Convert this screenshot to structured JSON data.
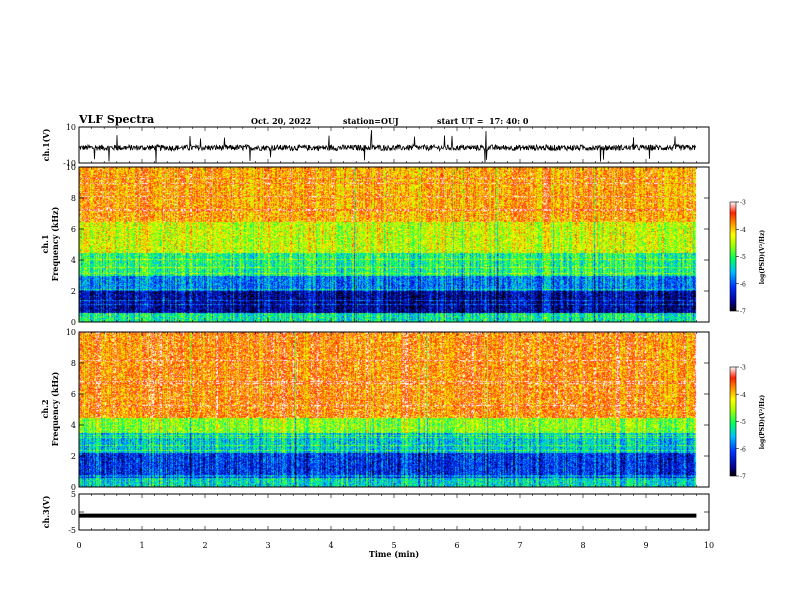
{
  "header": {
    "title": "VLF Spectra",
    "date": "Oct. 20, 2022",
    "station_label": "station=",
    "station": "OUJ",
    "start_label": "start  UT  =",
    "start_time": "17: 40: 0"
  },
  "chart_data": [
    {
      "type": "line",
      "name": "ch1-waveform",
      "ylabel": "ch.1(V)",
      "ylim": [
        -10,
        10
      ],
      "yticks": [
        "10",
        "-10"
      ],
      "xlim": [
        0,
        10
      ],
      "data_end": 9.8,
      "baseline": -1.5,
      "noise_amplitude": 2,
      "grid": false
    },
    {
      "type": "heatmap",
      "name": "ch1-spectrogram",
      "ylabel": "ch.1",
      "ylabel2": "Frequency  (kHz)",
      "ylim": [
        0,
        10
      ],
      "yticks": [
        "0",
        "2",
        "4",
        "6",
        "8",
        "10"
      ],
      "xlim": [
        0,
        10
      ],
      "data_end": 9.8,
      "colorbar": {
        "label": "log(PSD)(V²/Hz)",
        "range": [
          -7,
          -3
        ],
        "ticks": [
          "-3",
          "-4",
          "-5",
          "-6",
          "-7"
        ]
      }
    },
    {
      "type": "heatmap",
      "name": "ch2-spectrogram",
      "ylabel": "ch.2",
      "ylabel2": "Frequency  (kHz)",
      "ylim": [
        0,
        10
      ],
      "yticks": [
        "0",
        "2",
        "4",
        "6",
        "8",
        "10"
      ],
      "xlim": [
        0,
        10
      ],
      "data_end": 9.8,
      "colorbar": {
        "label": "log(PSD)(V²/Hz)",
        "range": [
          -7,
          -3
        ],
        "ticks": [
          "-3",
          "-4",
          "-5",
          "-6",
          "-7"
        ]
      }
    },
    {
      "type": "line",
      "name": "ch3-waveform",
      "ylabel": "ch.3(V)",
      "ylim": [
        -5,
        5
      ],
      "yticks": [
        "5",
        "0",
        "-5"
      ],
      "xlim": [
        0,
        10
      ],
      "data_end": 9.8,
      "baseline": -1,
      "grid": false
    }
  ],
  "xaxis": {
    "label": "Time  (min)",
    "ticks": [
      "0",
      "1",
      "2",
      "3",
      "4",
      "5",
      "6",
      "7",
      "8",
      "9",
      "10"
    ]
  }
}
